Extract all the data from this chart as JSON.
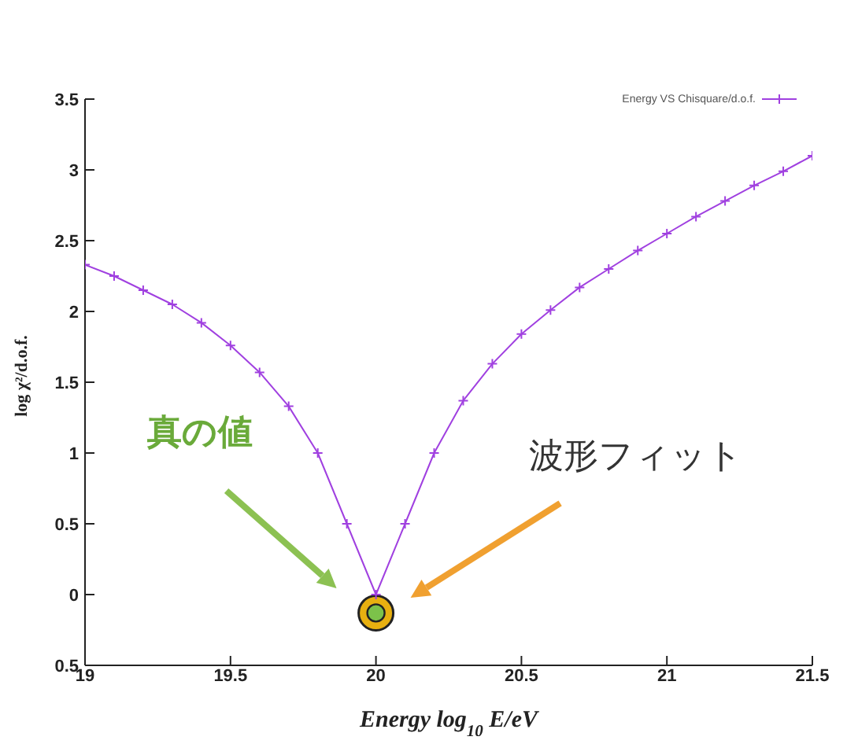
{
  "chart_data": {
    "type": "line",
    "xlabel": "Energy log$_{10}$ E/eV",
    "ylabel": "log χ²/d.o.f.",
    "xlim": [
      19,
      21.5
    ],
    "xticks": [
      19,
      19.5,
      20,
      20.5,
      21,
      21.5
    ],
    "ylim": [
      -0.5,
      3.5
    ],
    "yticks": [
      {
        "value": -0.5,
        "label": "0.5"
      },
      0,
      0.5,
      1,
      1.5,
      2,
      2.5,
      3,
      3.5
    ],
    "legend": "top right",
    "marker": "cross",
    "line_style": "solid",
    "series": [
      {
        "name": "Energy VS Chisquare/d.o.f.",
        "color": "#a040e0",
        "x": [
          19,
          19.1,
          19.2,
          19.3,
          19.4,
          19.5,
          19.6,
          19.7,
          19.8,
          19.9,
          20,
          20.1,
          20.2,
          20.3,
          20.4,
          20.5,
          20.6,
          20.7,
          20.8,
          20.9,
          21,
          21.1,
          21.2,
          21.3,
          21.4,
          21.5
        ],
        "values": [
          2.33,
          2.25,
          2.15,
          2.05,
          1.92,
          1.76,
          1.57,
          1.33,
          1.0,
          0.5,
          0,
          0.5,
          1.0,
          1.37,
          1.63,
          1.84,
          2.01,
          2.17,
          2.3,
          2.43,
          2.55,
          2.67,
          2.78,
          2.89,
          2.99,
          3.1
        ]
      },
      {
        "type": "scatter",
        "marker": "circle",
        "color": "#e8b010",
        "x": [
          20
        ],
        "values": [
          -0.13
        ]
      }
    ],
    "annotations": [
      "真の値",
      "波形フィット"
    ]
  }
}
